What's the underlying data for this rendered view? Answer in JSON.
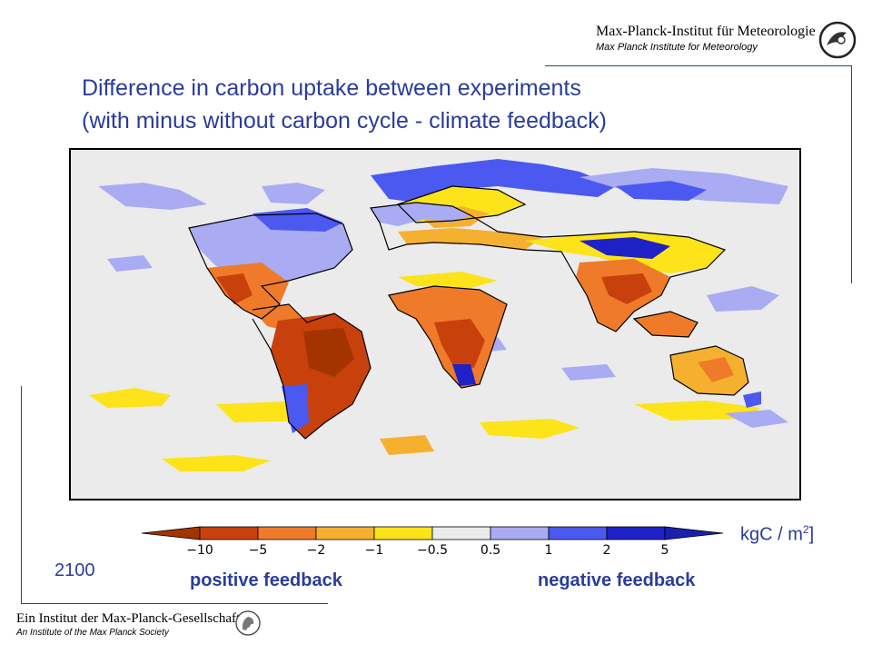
{
  "header": {
    "institute_name_de": "Max-Planck-Institut für Meteorologie",
    "institute_name_en": "Max Planck Institute for Meteorology"
  },
  "title": {
    "line1": "Difference in carbon uptake between experiments",
    "line2": "(with minus without carbon cycle - climate feedback)"
  },
  "map": {
    "projection": "equirectangular",
    "coverage": "global",
    "background_color": "#ebebeb",
    "coastline_color": "#000000"
  },
  "legend": {
    "ticks": [
      "−10",
      "−5",
      "−2",
      "−1",
      "−0.5",
      "0.5",
      "1",
      "2",
      "5"
    ],
    "colors": [
      "#c8410c",
      "#ef7b2a",
      "#f6b030",
      "#fde31a",
      "#ebebeb",
      "#a9acf3",
      "#4b59f0",
      "#1d21c6"
    ],
    "left_arrow_color": "#a33400",
    "right_arrow_color": "#1a1fb0",
    "unit": "kgC / m",
    "unit_exp": "2",
    "unit_close": "]",
    "positive_label": "positive feedback",
    "negative_label": "negative feedback"
  },
  "year": "2100",
  "footer": {
    "line1": "Ein Institut der Max-Planck-Gesellschaft",
    "line2": "An Institute of the Max Planck Society"
  }
}
